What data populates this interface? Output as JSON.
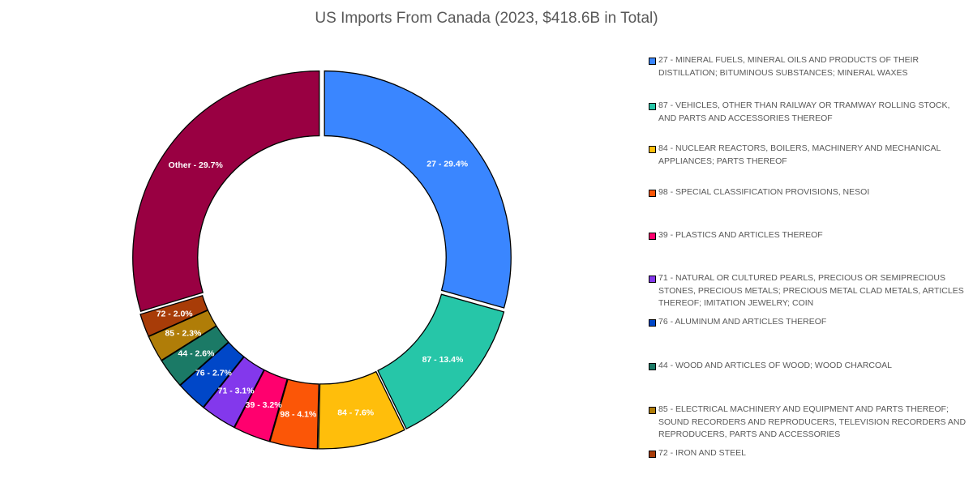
{
  "chart_data": {
    "type": "pie",
    "variant": "donut",
    "title": "US Imports From Canada (2023, $418.6B in Total)",
    "slices": [
      {
        "code": "27",
        "value": 29.4,
        "label": "27 - 29.4%",
        "color": "#3A86FF",
        "legend": "27 - MINERAL FUELS, MINERAL OILS AND PRODUCTS OF THEIR DISTILLATION; BITUMINOUS SUBSTANCES; MINERAL WAXES"
      },
      {
        "code": "87",
        "value": 13.4,
        "label": "87 - 13.4%",
        "color": "#26C6A8",
        "legend": "87 - VEHICLES, OTHER THAN RAILWAY OR TRAMWAY ROLLING STOCK, AND PARTS AND ACCESSORIES THEREOF"
      },
      {
        "code": "84",
        "value": 7.6,
        "label": "84 - 7.6%",
        "color": "#FFBE0B",
        "legend": "84 - NUCLEAR REACTORS, BOILERS, MACHINERY AND MECHANICAL APPLIANCES; PARTS THEREOF"
      },
      {
        "code": "98",
        "value": 4.1,
        "label": "98 - 4.1%",
        "color": "#FB5607",
        "legend": "98 - SPECIAL CLASSIFICATION PROVISIONS, NESOI"
      },
      {
        "code": "39",
        "value": 3.2,
        "label": "39 - 3.2%",
        "color": "#FF006E",
        "legend": "39 - PLASTICS AND ARTICLES THEREOF"
      },
      {
        "code": "71",
        "value": 3.1,
        "label": "71 - 3.1%",
        "color": "#8338EC",
        "legend": "71 - NATURAL OR CULTURED PEARLS, PRECIOUS OR SEMIPRECIOUS STONES, PRECIOUS METALS; PRECIOUS METAL CLAD METALS, ARTICLES THEREOF; IMITATION JEWELRY; COIN"
      },
      {
        "code": "76",
        "value": 2.7,
        "label": "76 - 2.7%",
        "color": "#0047C8",
        "legend": "76 - ALUMINUM AND ARTICLES THEREOF"
      },
      {
        "code": "44",
        "value": 2.6,
        "label": "44 - 2.6%",
        "color": "#1B7A66",
        "legend": "44 - WOOD AND ARTICLES OF WOOD; WOOD CHARCOAL"
      },
      {
        "code": "85",
        "value": 2.3,
        "label": "85 - 2.3%",
        "color": "#B07D08",
        "legend": "85 - ELECTRICAL MACHINERY AND EQUIPMENT AND PARTS THEREOF; SOUND RECORDERS AND REPRODUCERS, TELEVISION RECORDERS AND REPRODUCERS, PARTS AND ACCESSORIES"
      },
      {
        "code": "72",
        "value": 2.0,
        "label": "72 - 2.0%",
        "color": "#A83C08",
        "legend": "72 - IRON AND STEEL"
      },
      {
        "code": "Other",
        "value": 29.7,
        "label": "Other - 29.7%",
        "color": "#990042",
        "legend": ""
      }
    ],
    "legend_position": "right"
  }
}
